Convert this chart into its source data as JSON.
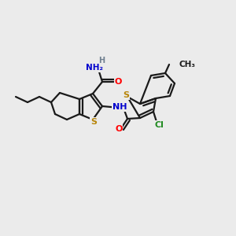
{
  "background_color": "#ebebeb",
  "bond_color": "#1a1a1a",
  "atom_colors": {
    "S": "#b8860b",
    "N": "#0000cd",
    "O": "#ff0000",
    "Cl": "#228b22",
    "C": "#1a1a1a",
    "H": "#708090"
  },
  "figsize": [
    3.0,
    3.0
  ],
  "dpi": 100,
  "xlim": [
    0,
    300
  ],
  "ylim": [
    0,
    300
  ]
}
